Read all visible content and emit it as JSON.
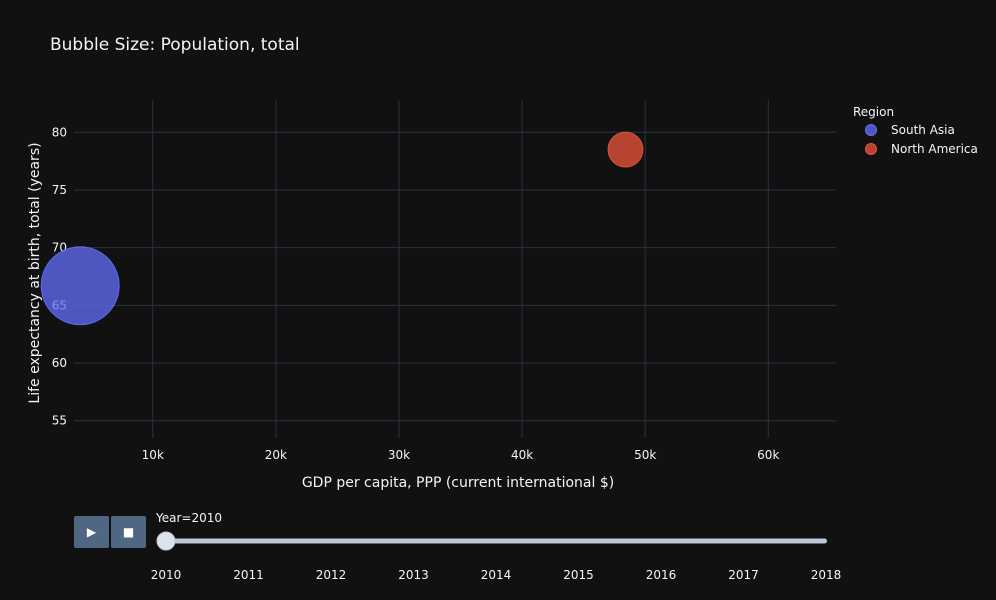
{
  "chart_data": {
    "type": "scatter",
    "title": "Bubble Size: Population, total",
    "xlabel": "GDP per capita, PPP (current international $)",
    "ylabel": "Life expectancy at birth, total (years)",
    "xlim": [
      3600,
      65500
    ],
    "ylim": [
      53.5,
      82.8
    ],
    "x_ticks": [
      10000,
      20000,
      30000,
      40000,
      50000,
      60000
    ],
    "x_tick_labels": [
      "10k",
      "20k",
      "30k",
      "40k",
      "50k",
      "60k"
    ],
    "y_ticks": [
      55,
      60,
      65,
      70,
      75,
      80
    ],
    "y_tick_labels": [
      "55",
      "60",
      "65",
      "70",
      "75",
      "80"
    ],
    "grid": true,
    "legend_title": "Region",
    "legend_position": "top-right",
    "series": [
      {
        "name": "South Asia",
        "color": "#636efa",
        "x": [
          4100
        ],
        "y": [
          66.7
        ],
        "size": [
          1700000000
        ]
      },
      {
        "name": "North America",
        "color": "#ef553b",
        "x": [
          48400
        ],
        "y": [
          78.5
        ],
        "size": [
          340000000
        ]
      }
    ],
    "slider": {
      "current_label": "Year=2010",
      "steps": [
        "2010",
        "2011",
        "2012",
        "2013",
        "2014",
        "2015",
        "2016",
        "2017",
        "2018"
      ],
      "active_index": 0
    }
  },
  "controls": {
    "play_icon": "▶",
    "stop_icon": "■"
  }
}
